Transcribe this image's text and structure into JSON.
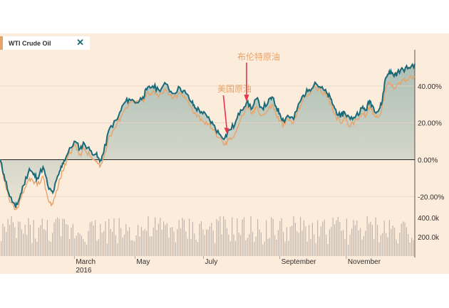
{
  "legend_tag": {
    "label": "WTI Crude Oil",
    "close_icon": "close-icon"
  },
  "colors": {
    "background": "#fcecdc",
    "wti": "#1a6a78",
    "brent": "#e8a36a",
    "area": "#cdd7cd",
    "volume": "#bfb5ab",
    "arrow": "#e8354a",
    "axis": "#33302e"
  },
  "chart_data": {
    "type": "line",
    "ylim": [
      -28,
      55
    ],
    "y_ticks": [
      "40.00%",
      "20.00%",
      "0.00%",
      "-20.00%"
    ],
    "y_tick_values": [
      40,
      20,
      0,
      -20
    ],
    "volume_ticks": [
      "400.0k",
      "200.0k"
    ],
    "volume_tick_values": [
      400,
      200
    ],
    "x_ticks": [
      {
        "label": "March",
        "sub": "2016",
        "t": 0.19
      },
      {
        "label": "May",
        "sub": "",
        "t": 0.345
      },
      {
        "label": "July",
        "sub": "",
        "t": 0.52
      },
      {
        "label": "September",
        "sub": "",
        "t": 0.715
      },
      {
        "label": "November",
        "sub": "",
        "t": 0.885
      }
    ],
    "annotations": [
      {
        "text": "美国原油",
        "series": 0,
        "t": 0.58
      },
      {
        "text": "布伦特原油",
        "series": 0,
        "t": 0.63
      }
    ],
    "series": [
      {
        "keypoints": [
          [
            0,
            0
          ],
          [
            0.01,
            -8
          ],
          [
            0.025,
            -20
          ],
          [
            0.04,
            -26
          ],
          [
            0.048,
            -22
          ],
          [
            0.06,
            -14
          ],
          [
            0.075,
            -5
          ],
          [
            0.085,
            -8
          ],
          [
            0.095,
            -10
          ],
          [
            0.11,
            -4
          ],
          [
            0.125,
            -16
          ],
          [
            0.135,
            -18
          ],
          [
            0.15,
            -8
          ],
          [
            0.16,
            -2
          ],
          [
            0.17,
            2
          ],
          [
            0.19,
            10
          ],
          [
            0.205,
            6
          ],
          [
            0.215,
            9
          ],
          [
            0.23,
            5
          ],
          [
            0.245,
            3
          ],
          [
            0.255,
            -1
          ],
          [
            0.265,
            4
          ],
          [
            0.28,
            17
          ],
          [
            0.3,
            22
          ],
          [
            0.315,
            30
          ],
          [
            0.33,
            33
          ],
          [
            0.35,
            31
          ],
          [
            0.365,
            34
          ],
          [
            0.375,
            38
          ],
          [
            0.39,
            40
          ],
          [
            0.405,
            38
          ],
          [
            0.425,
            41
          ],
          [
            0.44,
            36
          ],
          [
            0.46,
            39
          ],
          [
            0.475,
            36
          ],
          [
            0.49,
            31
          ],
          [
            0.5,
            28
          ],
          [
            0.515,
            26
          ],
          [
            0.53,
            23
          ],
          [
            0.545,
            19
          ],
          [
            0.56,
            14
          ],
          [
            0.575,
            12
          ],
          [
            0.585,
            16
          ],
          [
            0.6,
            19
          ],
          [
            0.615,
            27
          ],
          [
            0.63,
            31
          ],
          [
            0.645,
            28
          ],
          [
            0.655,
            33
          ],
          [
            0.67,
            28
          ],
          [
            0.685,
            31
          ],
          [
            0.695,
            34
          ],
          [
            0.705,
            29
          ],
          [
            0.715,
            25
          ],
          [
            0.725,
            21
          ],
          [
            0.735,
            24
          ],
          [
            0.75,
            22
          ],
          [
            0.76,
            28
          ],
          [
            0.775,
            35
          ],
          [
            0.79,
            38
          ],
          [
            0.805,
            42
          ],
          [
            0.82,
            39
          ],
          [
            0.835,
            36
          ],
          [
            0.845,
            33
          ],
          [
            0.855,
            28
          ],
          [
            0.87,
            23
          ],
          [
            0.88,
            26
          ],
          [
            0.895,
            22
          ],
          [
            0.91,
            24
          ],
          [
            0.925,
            28
          ],
          [
            0.935,
            27
          ],
          [
            0.945,
            32
          ],
          [
            0.955,
            28
          ],
          [
            0.965,
            26
          ],
          [
            0.975,
            30
          ],
          [
            0.985,
            44
          ],
          [
            0.995,
            48
          ],
          [
            1.005,
            46
          ],
          [
            1.015,
            47
          ],
          [
            1.03,
            49
          ],
          [
            1.045,
            50
          ],
          [
            1.06,
            52
          ]
        ]
      },
      {
        "keypoints": [
          [
            0,
            0
          ],
          [
            0.01,
            -11
          ],
          [
            0.025,
            -23
          ],
          [
            0.04,
            -27
          ],
          [
            0.048,
            -25
          ],
          [
            0.06,
            -18
          ],
          [
            0.075,
            -10
          ],
          [
            0.085,
            -12
          ],
          [
            0.095,
            -14
          ],
          [
            0.11,
            -9
          ],
          [
            0.125,
            -23
          ],
          [
            0.135,
            -24
          ],
          [
            0.15,
            -13
          ],
          [
            0.16,
            -6
          ],
          [
            0.17,
            -1
          ],
          [
            0.19,
            8
          ],
          [
            0.205,
            3
          ],
          [
            0.215,
            6
          ],
          [
            0.23,
            2
          ],
          [
            0.245,
            -1
          ],
          [
            0.255,
            -4
          ],
          [
            0.265,
            1
          ],
          [
            0.28,
            13
          ],
          [
            0.3,
            20
          ],
          [
            0.315,
            26
          ],
          [
            0.33,
            31
          ],
          [
            0.35,
            32
          ],
          [
            0.365,
            32
          ],
          [
            0.375,
            36
          ],
          [
            0.39,
            37
          ],
          [
            0.405,
            34
          ],
          [
            0.425,
            38
          ],
          [
            0.44,
            33
          ],
          [
            0.46,
            36
          ],
          [
            0.475,
            33
          ],
          [
            0.49,
            28
          ],
          [
            0.5,
            25
          ],
          [
            0.515,
            22
          ],
          [
            0.53,
            19
          ],
          [
            0.545,
            16
          ],
          [
            0.56,
            12
          ],
          [
            0.575,
            8
          ],
          [
            0.585,
            11
          ],
          [
            0.6,
            14
          ],
          [
            0.615,
            22
          ],
          [
            0.63,
            28
          ],
          [
            0.645,
            25
          ],
          [
            0.655,
            29
          ],
          [
            0.67,
            24
          ],
          [
            0.685,
            27
          ],
          [
            0.695,
            30
          ],
          [
            0.705,
            25
          ],
          [
            0.715,
            21
          ],
          [
            0.725,
            19
          ],
          [
            0.735,
            22
          ],
          [
            0.75,
            20
          ],
          [
            0.76,
            26
          ],
          [
            0.775,
            33
          ],
          [
            0.79,
            36
          ],
          [
            0.805,
            40
          ],
          [
            0.82,
            37
          ],
          [
            0.835,
            34
          ],
          [
            0.845,
            30
          ],
          [
            0.855,
            25
          ],
          [
            0.87,
            20
          ],
          [
            0.88,
            23
          ],
          [
            0.895,
            18
          ],
          [
            0.91,
            22
          ],
          [
            0.925,
            25
          ],
          [
            0.935,
            24
          ],
          [
            0.945,
            29
          ],
          [
            0.955,
            25
          ],
          [
            0.965,
            23
          ],
          [
            0.975,
            27
          ],
          [
            0.985,
            38
          ],
          [
            0.995,
            42
          ],
          [
            1.005,
            39
          ],
          [
            1.015,
            41
          ],
          [
            1.03,
            43
          ],
          [
            1.045,
            44
          ],
          [
            1.06,
            45
          ]
        ]
      }
    ]
  }
}
